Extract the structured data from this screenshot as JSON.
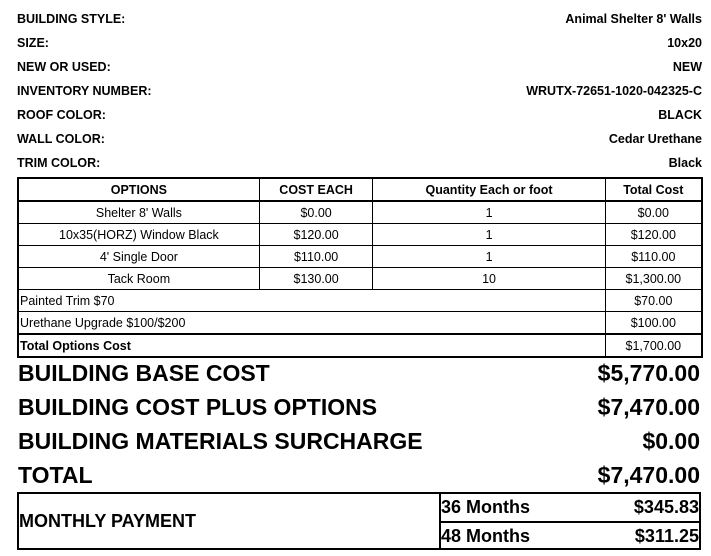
{
  "info": [
    {
      "label": "BUILDING STYLE:",
      "value": "Animal Shelter 8' Walls"
    },
    {
      "label": "SIZE:",
      "value": "10x20"
    },
    {
      "label": "NEW OR USED:",
      "value": "NEW"
    },
    {
      "label": "INVENTORY NUMBER:",
      "value": "WRUTX-72651-1020-042325-C"
    },
    {
      "label": "ROOF COLOR:",
      "value": "BLACK"
    },
    {
      "label": "WALL COLOR:",
      "value": "Cedar Urethane"
    },
    {
      "label": "TRIM COLOR:",
      "value": "Black"
    }
  ],
  "options_table": {
    "headers": [
      "OPTIONS",
      "COST EACH",
      "Quantity Each or foot",
      "Total Cost"
    ],
    "rows": [
      [
        "Shelter 8' Walls",
        "$0.00",
        "1",
        "$0.00"
      ],
      [
        "10x35(HORZ) Window Black",
        "$120.00",
        "1",
        "$120.00"
      ],
      [
        "4' Single Door",
        "$110.00",
        "1",
        "$110.00"
      ],
      [
        "Tack Room",
        "$130.00",
        "10",
        "$1,300.00"
      ]
    ],
    "extras": [
      {
        "label": "Painted Trim $70",
        "total": "$70.00"
      },
      {
        "label": "Urethane Upgrade $100/$200",
        "total": "$100.00"
      }
    ],
    "total": {
      "label": "Total Options Cost",
      "value": "$1,700.00"
    }
  },
  "summary": [
    {
      "label": "BUILDING BASE COST",
      "value": "$5,770.00"
    },
    {
      "label": "BUILDING COST PLUS OPTIONS",
      "value": "$7,470.00"
    },
    {
      "label": "BUILDING MATERIALS SURCHARGE",
      "value": "$0.00"
    },
    {
      "label": "TOTAL",
      "value": "$7,470.00"
    }
  ],
  "monthly": {
    "label": "MONTHLY PAYMENT",
    "plans": [
      {
        "term": "36 Months",
        "amount": "$345.83"
      },
      {
        "term": "48 Months",
        "amount": "$311.25"
      }
    ]
  }
}
